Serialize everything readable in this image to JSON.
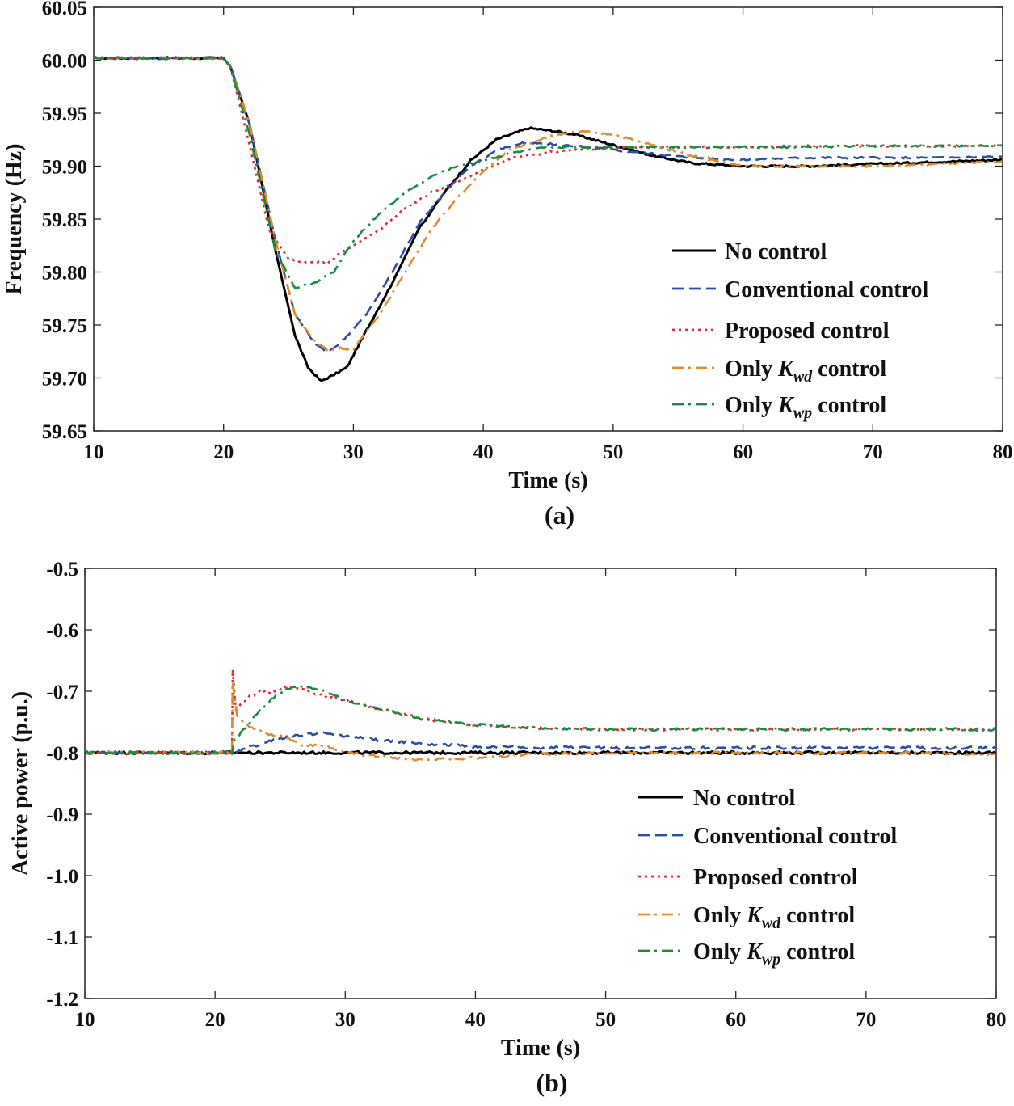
{
  "chart_data": [
    {
      "panel": "(a)",
      "type": "line",
      "xlabel": "Time (s)",
      "ylabel": "Frequency (Hz)",
      "xlim": [
        10,
        80
      ],
      "ylim": [
        59.65,
        60.05
      ],
      "xticks": [
        "10",
        "20",
        "30",
        "40",
        "50",
        "60",
        "70",
        "80"
      ],
      "yticks": [
        "59.65",
        "59.70",
        "59.75",
        "59.80",
        "59.85",
        "59.90",
        "59.95",
        "60.00",
        "60.05"
      ],
      "grid": false,
      "legend_position": "lower-right",
      "series": [
        {
          "name": "No control",
          "color": "#000000",
          "style": "solid",
          "x": [
            10,
            20,
            20.5,
            22,
            24,
            25.5,
            26.5,
            27.5,
            28.5,
            29.5,
            31,
            33,
            35,
            37,
            39,
            41,
            43.5,
            45.5,
            47,
            50,
            53,
            56,
            60,
            65,
            70,
            75,
            80
          ],
          "y": [
            60.002,
            60.002,
            59.995,
            59.94,
            59.82,
            59.74,
            59.71,
            59.697,
            59.703,
            59.71,
            59.745,
            59.79,
            59.84,
            59.875,
            59.905,
            59.925,
            59.936,
            59.933,
            59.93,
            59.92,
            59.91,
            59.903,
            59.9,
            59.9,
            59.902,
            59.904,
            59.906
          ]
        },
        {
          "name": "Conventional control",
          "color": "#2a4ea3",
          "style": "dashed",
          "x": [
            10,
            20,
            20.5,
            22,
            24,
            25.5,
            27,
            28,
            29,
            31,
            33,
            35,
            37,
            39,
            41,
            43,
            45,
            48,
            52,
            56,
            60,
            65,
            70,
            75,
            80
          ],
          "y": [
            60.002,
            60.002,
            59.995,
            59.94,
            59.83,
            59.76,
            59.733,
            59.724,
            59.733,
            59.76,
            59.8,
            59.845,
            59.875,
            59.9,
            59.915,
            59.922,
            59.921,
            59.918,
            59.913,
            59.908,
            59.906,
            59.908,
            59.908,
            59.908,
            59.909
          ]
        },
        {
          "name": "Proposed control",
          "color": "#e8262a",
          "style": "dotted",
          "x": [
            10,
            20,
            20.5,
            22,
            23.5,
            25,
            26,
            27,
            28,
            29,
            30,
            32,
            34,
            36,
            38,
            40,
            42,
            45,
            48,
            52,
            56,
            60,
            65,
            70,
            75,
            80
          ],
          "y": [
            60.002,
            60.002,
            59.995,
            59.92,
            59.84,
            59.812,
            59.81,
            59.81,
            59.808,
            59.818,
            59.825,
            59.84,
            59.86,
            59.875,
            59.885,
            59.897,
            59.907,
            59.913,
            59.916,
            59.918,
            59.918,
            59.918,
            59.919,
            59.919,
            59.919,
            59.919
          ]
        },
        {
          "name": "Only Kwd control",
          "color": "#e08a2c",
          "style": "dashdot",
          "x": [
            10,
            20,
            20.5,
            22,
            24,
            25.5,
            27,
            28,
            29,
            30,
            32,
            34,
            36,
            38,
            40,
            42,
            45,
            47.5,
            50,
            53,
            56,
            60,
            65,
            70,
            75,
            80
          ],
          "y": [
            60.002,
            60.002,
            59.995,
            59.94,
            59.83,
            59.76,
            59.735,
            59.726,
            59.728,
            59.727,
            59.76,
            59.8,
            59.84,
            59.87,
            59.895,
            59.915,
            59.928,
            59.933,
            59.93,
            59.92,
            59.91,
            59.9,
            59.9,
            59.9,
            59.902,
            59.904
          ]
        },
        {
          "name": "Only Kwp control",
          "color": "#1b8a43",
          "style": "dashdot",
          "x": [
            10,
            20,
            20.5,
            22,
            24,
            25.5,
            27,
            28.5,
            30,
            32,
            34,
            36,
            38,
            40,
            42,
            45,
            48,
            52,
            56,
            60,
            65,
            70,
            75,
            80
          ],
          "y": [
            60.002,
            60.002,
            59.995,
            59.93,
            59.82,
            59.785,
            59.79,
            59.8,
            59.83,
            59.855,
            59.875,
            59.89,
            59.9,
            59.905,
            59.912,
            59.918,
            59.918,
            59.918,
            59.918,
            59.918,
            59.918,
            59.919,
            59.919,
            59.92
          ]
        }
      ]
    },
    {
      "panel": "(b)",
      "type": "line",
      "xlabel": "Time (s)",
      "ylabel": "Active power (p.u.)",
      "xlim": [
        10,
        80
      ],
      "ylim": [
        -1.2,
        -0.5
      ],
      "xticks": [
        "10",
        "20",
        "30",
        "40",
        "50",
        "60",
        "70",
        "80"
      ],
      "yticks": [
        "-1.2",
        "-1.1",
        "-1.0",
        "-0.9",
        "-0.8",
        "-0.7",
        "-0.6",
        "-0.5"
      ],
      "grid": false,
      "legend_position": "lower-right",
      "series": [
        {
          "name": "No control",
          "color": "#000000",
          "style": "solid",
          "x": [
            10,
            21.3,
            25,
            30,
            35,
            40,
            50,
            60,
            70,
            80
          ],
          "y": [
            -0.8,
            -0.8,
            -0.8,
            -0.8,
            -0.8,
            -0.8,
            -0.8,
            -0.8,
            -0.8,
            -0.8
          ]
        },
        {
          "name": "Conventional control",
          "color": "#2a4ea3",
          "style": "dashed",
          "x": [
            10,
            21.3,
            22.5,
            24,
            26,
            28,
            30,
            33,
            36,
            40,
            45,
            50,
            60,
            70,
            80
          ],
          "y": [
            -0.8,
            -0.8,
            -0.793,
            -0.782,
            -0.773,
            -0.768,
            -0.773,
            -0.78,
            -0.785,
            -0.79,
            -0.792,
            -0.792,
            -0.792,
            -0.792,
            -0.792
          ]
        },
        {
          "name": "Proposed control",
          "color": "#e8262a",
          "style": "dotted",
          "x": [
            10,
            21.3,
            21.35,
            21.6,
            22.5,
            23.5,
            24.5,
            25.3,
            26.5,
            28,
            30,
            33,
            36,
            40,
            45,
            50,
            55,
            60,
            70,
            80
          ],
          "y": [
            -0.8,
            -0.8,
            -0.665,
            -0.73,
            -0.71,
            -0.7,
            -0.703,
            -0.692,
            -0.697,
            -0.705,
            -0.715,
            -0.73,
            -0.745,
            -0.755,
            -0.76,
            -0.762,
            -0.762,
            -0.762,
            -0.762,
            -0.762
          ]
        },
        {
          "name": "Only Kwd control",
          "color": "#e08a2c",
          "style": "dashdot",
          "x": [
            10,
            21.3,
            21.35,
            21.7,
            22.5,
            24,
            25.5,
            27,
            28,
            30,
            33,
            36,
            40,
            45,
            50,
            60,
            70,
            80
          ],
          "y": [
            -0.8,
            -0.8,
            -0.685,
            -0.74,
            -0.755,
            -0.77,
            -0.775,
            -0.79,
            -0.785,
            -0.8,
            -0.807,
            -0.812,
            -0.808,
            -0.802,
            -0.8,
            -0.8,
            -0.8,
            -0.802
          ]
        },
        {
          "name": "Only Kwp control",
          "color": "#1b8a43",
          "style": "dashdot",
          "x": [
            10,
            21.3,
            21.5,
            22.5,
            23.5,
            24.5,
            25.5,
            26.5,
            28,
            30,
            33,
            36,
            40,
            45,
            50,
            60,
            70,
            80
          ],
          "y": [
            -0.8,
            -0.8,
            -0.78,
            -0.755,
            -0.73,
            -0.71,
            -0.697,
            -0.692,
            -0.697,
            -0.715,
            -0.73,
            -0.745,
            -0.755,
            -0.76,
            -0.762,
            -0.762,
            -0.762,
            -0.762
          ]
        }
      ]
    }
  ],
  "legend": {
    "entries": [
      {
        "key": "no_control",
        "text": "No control"
      },
      {
        "key": "conventional",
        "text": "Conventional control"
      },
      {
        "key": "proposed",
        "text": "Proposed control"
      },
      {
        "key": "kwd",
        "prefix": "Only ",
        "symbol": "K",
        "subscript": "wd",
        "suffix": " control"
      },
      {
        "key": "kwp",
        "prefix": "Only ",
        "symbol": "K",
        "subscript": "wp",
        "suffix": " control"
      }
    ]
  },
  "captions": {
    "a": "(a)",
    "b": "(b)"
  }
}
